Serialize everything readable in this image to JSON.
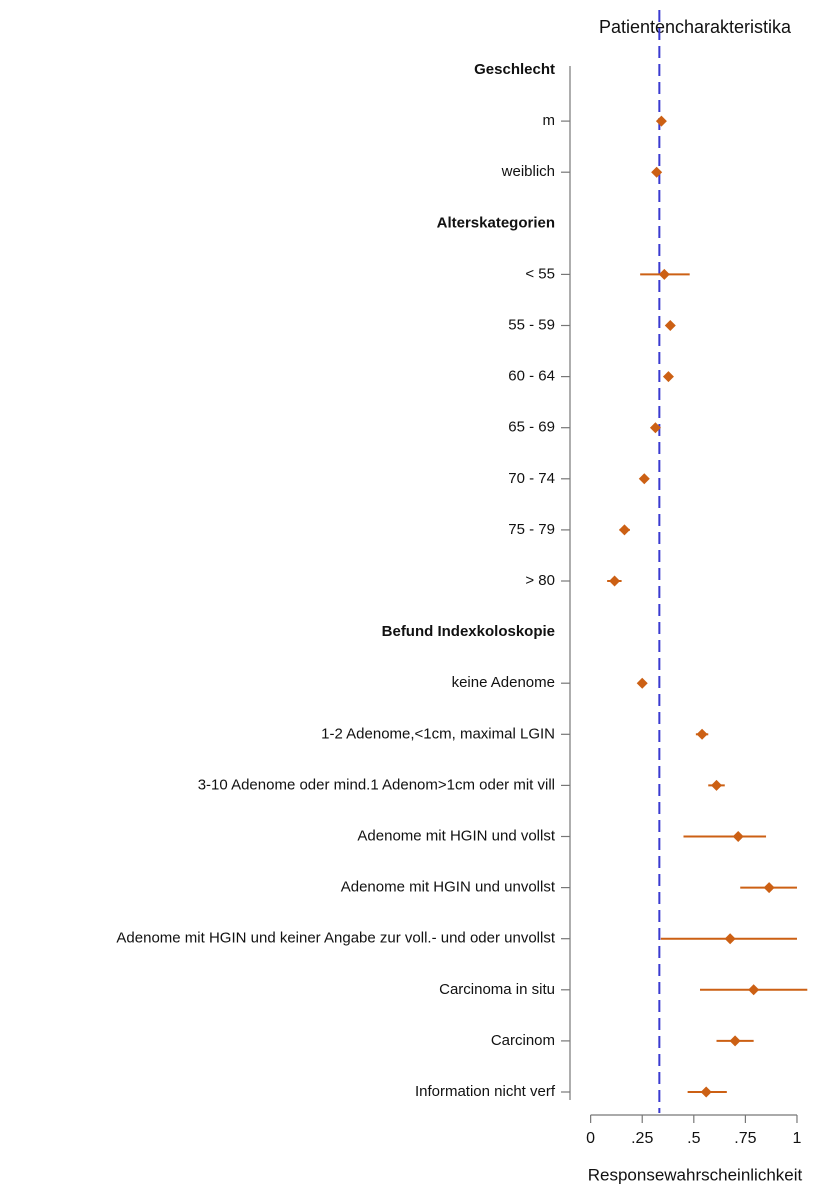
{
  "chart_data": {
    "type": "forest",
    "title": "Patientencharakteristika",
    "x_label": "Responsewahrscheinlichkeit",
    "xlim": [
      -0.1,
      1.16
    ],
    "xticks": [
      0,
      {
        "value": 0.25,
        "label": ".25"
      },
      {
        "value": 0.5,
        "label": ".5"
      },
      {
        "value": 0.75,
        "label": ".75"
      },
      1
    ],
    "reference_line": 0.333,
    "color": "#cc6014",
    "reference_color": "#3a3ad0",
    "groups": [
      {
        "name": "Geschlecht",
        "categories": [
          "m",
          "weiblich"
        ],
        "values": [
          0.343,
          0.32
        ],
        "ci_low": [
          0.333,
          0.31
        ],
        "ci_high": [
          0.355,
          0.33
        ]
      },
      {
        "name": "Alterskategorien",
        "categories": [
          "< 55",
          "55 - 59",
          "60 - 64",
          "65 - 69",
          "70 - 74",
          "75 - 79",
          "> 80"
        ],
        "values": [
          0.357,
          0.386,
          0.377,
          0.314,
          0.26,
          0.164,
          0.116
        ],
        "ci_low": [
          0.24,
          0.37,
          0.36,
          0.3,
          0.24,
          0.14,
          0.08
        ],
        "ci_high": [
          0.48,
          0.4,
          0.39,
          0.33,
          0.28,
          0.19,
          0.15
        ]
      },
      {
        "name": "Befund Indexkoloskopie",
        "categories": [
          "keine Adenome",
          "1-2 Adenome,<1cm, maximal LGIN",
          "3-10 Adenome oder mind.1 Adenom>1cm oder mit vill",
          "Adenome mit HGIN und vollst",
          "Adenome mit HGIN und unvollst",
          "Adenome mit HGIN und keiner Angabe zur voll.- und oder unvollst",
          "Carcinoma in situ",
          "Carcinom",
          "Information nicht verf"
        ],
        "values": [
          0.25,
          0.54,
          0.61,
          0.715,
          0.865,
          0.676,
          0.79,
          0.7,
          0.56
        ],
        "ci_low": [
          0.24,
          0.51,
          0.57,
          0.45,
          0.725,
          0.34,
          0.53,
          0.61,
          0.47
        ],
        "ci_high": [
          0.26,
          0.57,
          0.65,
          0.85,
          1.0,
          1.0,
          1.05,
          0.79,
          0.66
        ]
      }
    ]
  }
}
